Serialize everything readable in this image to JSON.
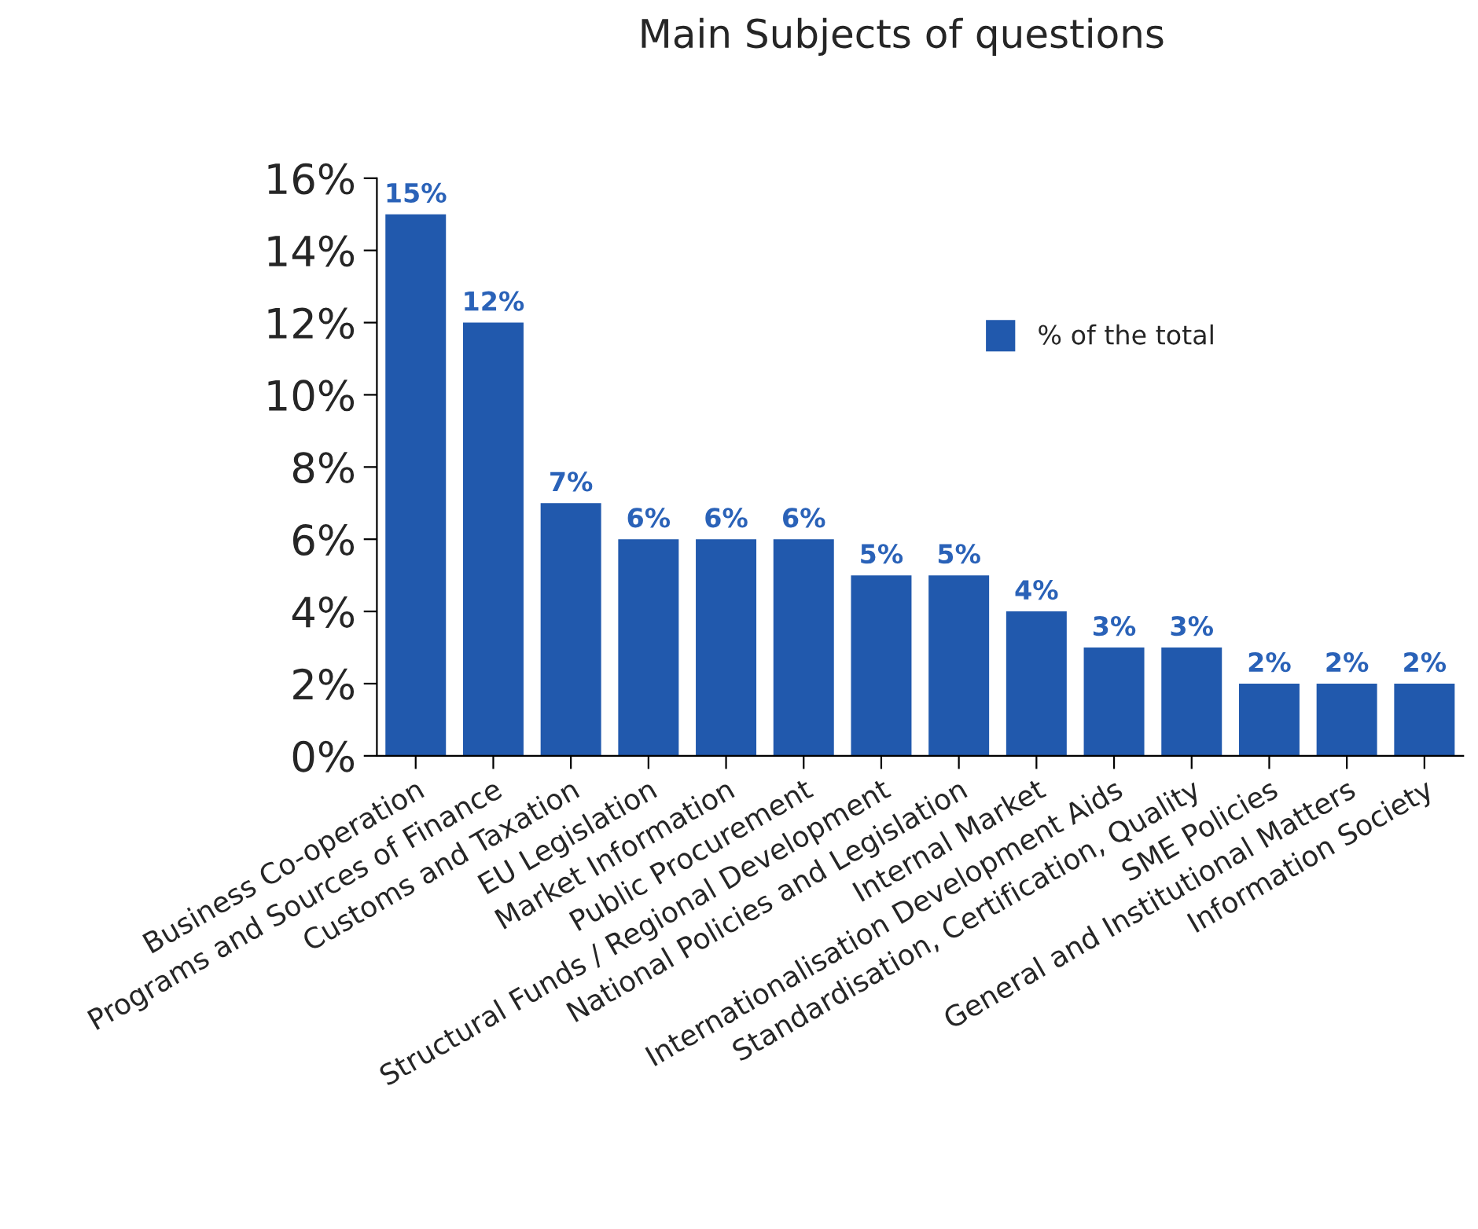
{
  "chart_data": {
    "type": "bar",
    "title": "Main Subjects of questions",
    "categories": [
      "Business Co-operation",
      "Programs and Sources of Finance",
      "Customs and Taxation",
      "EU Legislation",
      "Market Information",
      "Public Procurement",
      "Structural Funds / Regional Development",
      "National Policies and Legislation",
      "Internal Market",
      "Internationalisation Development Aids",
      "Standardisation, Certification, Quality",
      "SME Policies",
      "General and Institutional Matters",
      "Information Society"
    ],
    "series": [
      {
        "name": "% of the total",
        "color": "#2159ad",
        "values": [
          15,
          12,
          7,
          6,
          6,
          6,
          5,
          5,
          4,
          3,
          3,
          2,
          2,
          2
        ],
        "value_labels": [
          "15%",
          "12%",
          "7%",
          "6%",
          "6%",
          "6%",
          "5%",
          "5%",
          "4%",
          "3%",
          "3%",
          "2%",
          "2%",
          "2%"
        ]
      }
    ],
    "ylim": [
      0,
      16
    ],
    "yticks": [
      {
        "value": 0,
        "label": "0%"
      },
      {
        "value": 2,
        "label": "2%"
      },
      {
        "value": 4,
        "label": "4%"
      },
      {
        "value": 6,
        "label": "6%"
      },
      {
        "value": 8,
        "label": "8%"
      },
      {
        "value": 10,
        "label": "10%"
      },
      {
        "value": 12,
        "label": "12%"
      },
      {
        "value": 14,
        "label": "14%"
      },
      {
        "value": 16,
        "label": "16%"
      }
    ],
    "legend": "top right",
    "grid": false
  }
}
